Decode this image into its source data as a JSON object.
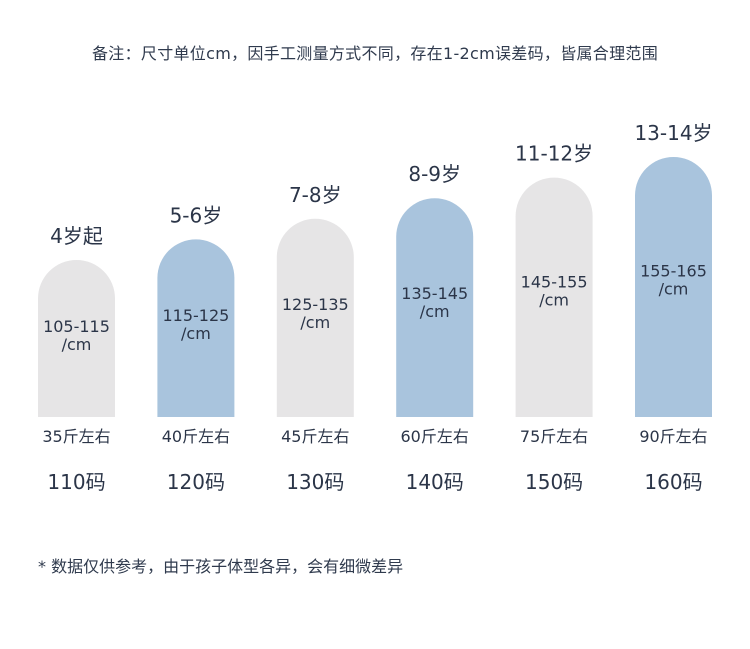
{
  "note": "备注：尺寸单位cm，因手工测量方式不同，存在1-2cm误差码，皆属合理范围",
  "footer": "* 数据仅供参考，由于孩子体型各异，会有细微差异",
  "colors": {
    "gray": "#e6e5e6",
    "blue": "#a9c4dd",
    "text": "#2b3548"
  },
  "chart_data": {
    "type": "bar",
    "title": "",
    "xlabel": "",
    "ylabel": "",
    "ylim": [
      105,
      165
    ],
    "categories": [
      "110码",
      "120码",
      "130码",
      "140码",
      "150码",
      "160码"
    ],
    "ages": [
      "4岁起",
      "5-6岁",
      "7-8岁",
      "8-9岁",
      "11-12岁",
      "13-14岁"
    ],
    "weights": [
      "35斤左右",
      "40斤左右",
      "45斤左右",
      "60斤左右",
      "75斤左右",
      "90斤左右"
    ],
    "height_labels": [
      "105-115",
      "115-125",
      "125-135",
      "135-145",
      "145-155",
      "155-165"
    ],
    "height_unit": "/cm",
    "values": [
      105,
      115,
      125,
      135,
      145,
      155
    ],
    "bar_colors": [
      "gray",
      "blue",
      "gray",
      "blue",
      "gray",
      "blue"
    ]
  }
}
